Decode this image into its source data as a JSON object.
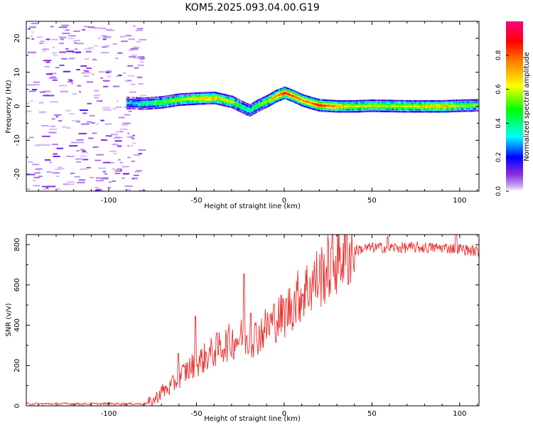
{
  "title": "KOM5.2025.093.04.00.G19",
  "chart_data": [
    {
      "type": "heatmap",
      "xlabel": "Height of straight line (km)",
      "ylabel": "Frequency (Hz)",
      "xlim": [
        -147,
        111
      ],
      "ylim": [
        -25,
        25
      ],
      "xticks": [
        -100,
        -50,
        0,
        50,
        100
      ],
      "yticks": [
        20,
        10,
        0,
        -10,
        -20
      ],
      "ridge": {
        "x": [
          -90,
          -80,
          -70,
          -60,
          -50,
          -40,
          -30,
          -25,
          -20,
          -15,
          -10,
          -5,
          0,
          5,
          10,
          15,
          20,
          30,
          40,
          50,
          60,
          70,
          80,
          90,
          100,
          110
        ],
        "freq": [
          1,
          0.8,
          1.2,
          2,
          2.3,
          2.5,
          1.3,
          0,
          -1.2,
          0.3,
          1.5,
          3,
          4,
          3,
          1.8,
          1,
          0.3,
          0,
          0,
          0.2,
          0.1,
          0,
          0,
          0,
          0.2,
          0.3
        ],
        "amplitude": [
          0.3,
          0.4,
          0.5,
          0.6,
          0.65,
          0.7,
          0.6,
          0.45,
          0.4,
          0.5,
          0.6,
          0.75,
          0.9,
          0.8,
          0.75,
          0.8,
          0.9,
          0.7,
          0.6,
          0.65,
          0.6,
          0.6,
          0.65,
          0.7,
          0.6,
          0.55
        ]
      },
      "colorbar": {
        "label": "Normalized spectral amplitude",
        "range": [
          0,
          1
        ],
        "ticks": [
          "0.0",
          "0.2",
          "0.4",
          "0.6",
          "0.8"
        ]
      }
    },
    {
      "type": "line",
      "xlabel": "Height of straight line (km)",
      "ylabel": "SNR (v/v)",
      "xlim": [
        -147,
        111
      ],
      "ylim": [
        0,
        850
      ],
      "xticks": [
        -100,
        -50,
        0,
        50,
        100
      ],
      "yticks": [
        0,
        200,
        400,
        600,
        800
      ],
      "color": "#e8312f",
      "series": [
        {
          "x": [
            -147,
            -120,
            -100,
            -80,
            -75,
            -70,
            -65,
            -60,
            -55,
            -50,
            -45,
            -40,
            -35,
            -30,
            -25,
            -20,
            -15,
            -10,
            -5,
            0,
            5,
            10,
            15,
            20,
            25,
            30,
            35,
            40,
            45,
            50,
            55,
            60,
            70,
            80,
            90,
            100,
            111
          ],
          "values": [
            10,
            10,
            10,
            10,
            20,
            70,
            90,
            140,
            180,
            210,
            240,
            270,
            300,
            320,
            340,
            330,
            350,
            390,
            430,
            450,
            510,
            560,
            600,
            640,
            680,
            730,
            760,
            770,
            780,
            785,
            785,
            785,
            785,
            785,
            785,
            780,
            765
          ]
        }
      ],
      "spikes": [
        {
          "x": -50.5,
          "value": 445
        },
        {
          "x": -23,
          "value": 655
        },
        {
          "x": -19,
          "value": 460
        },
        {
          "x": -60.5,
          "value": 260
        },
        {
          "x": 59,
          "value": 840
        },
        {
          "x": 98,
          "value": 850
        }
      ]
    }
  ]
}
